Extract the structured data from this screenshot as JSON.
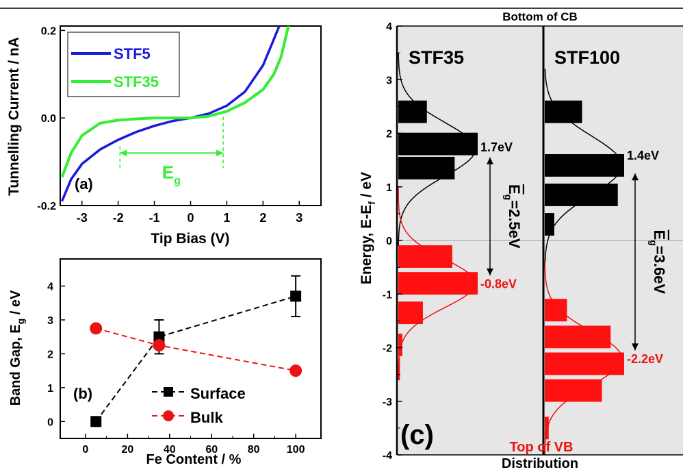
{
  "chart_data": [
    {
      "panel": "a",
      "type": "line",
      "panel_label": "(a)",
      "xlabel": "Tip Bias (V)",
      "ylabel": "Tunnelling Current / nA",
      "xlim": [
        -3.6,
        3.6
      ],
      "ylim": [
        -0.2,
        0.21
      ],
      "xticks": [
        -3,
        -2,
        -1,
        0,
        1,
        2,
        3
      ],
      "xtick_labels": [
        "-3",
        "-2",
        "-1",
        "0",
        "1",
        "2",
        "3"
      ],
      "yticks": [
        -0.2,
        0.0,
        0.2
      ],
      "ytick_labels": [
        "-0.2",
        "0.0",
        "0.2"
      ],
      "legend_position": "top-left",
      "series": [
        {
          "name": "STF5",
          "color": "#1a1adb",
          "x": [
            -3.55,
            -3.3,
            -3.0,
            -2.5,
            -2.0,
            -1.5,
            -1.0,
            -0.5,
            0.0,
            0.5,
            1.0,
            1.5,
            2.0,
            2.2,
            2.45
          ],
          "y": [
            -0.19,
            -0.14,
            -0.105,
            -0.072,
            -0.05,
            -0.032,
            -0.018,
            -0.007,
            0.0,
            0.01,
            0.028,
            0.06,
            0.12,
            0.16,
            0.21
          ]
        },
        {
          "name": "STF35",
          "color": "#33ee33",
          "x": [
            -3.55,
            -3.3,
            -3.0,
            -2.5,
            -2.0,
            -1.5,
            -1.0,
            -0.5,
            0.0,
            0.5,
            1.0,
            1.5,
            2.0,
            2.3,
            2.5,
            2.7
          ],
          "y": [
            -0.135,
            -0.08,
            -0.04,
            -0.012,
            -0.005,
            -0.002,
            0.0,
            0.0,
            0.0,
            0.004,
            0.015,
            0.035,
            0.065,
            0.1,
            0.14,
            0.21
          ]
        }
      ],
      "gap_annotation": {
        "text": "E",
        "subscript": "g",
        "from_x": -1.95,
        "to_x": 0.9,
        "y": -0.08
      }
    },
    {
      "panel": "b",
      "type": "scatter",
      "panel_label": "(b)",
      "xlabel": "Fe Content  / %",
      "ylabel": "Band Gap, E",
      "ylabel_sub": "g",
      "ylabel_suffix": " / eV",
      "xlim": [
        -12,
        112
      ],
      "ylim": [
        -0.5,
        4.8
      ],
      "xticks": [
        0,
        20,
        40,
        60,
        80,
        100
      ],
      "xtick_labels": [
        "0",
        "20",
        "40",
        "60",
        "80",
        "100"
      ],
      "yticks": [
        0,
        1,
        2,
        3,
        4
      ],
      "ytick_labels": [
        "0",
        "1",
        "2",
        "3",
        "4"
      ],
      "legend_position": "bottom-right",
      "series": [
        {
          "name": "Surface",
          "marker": "square",
          "color": "#000000",
          "x": [
            5,
            35,
            100
          ],
          "y": [
            0.0,
            2.5,
            3.7
          ],
          "yerr": [
            0,
            0.5,
            0.6
          ]
        },
        {
          "name": "Bulk",
          "marker": "circle",
          "color": "#ee1111",
          "x": [
            5,
            35,
            100
          ],
          "y": [
            2.75,
            2.25,
            1.5
          ]
        }
      ]
    },
    {
      "panel": "c",
      "type": "bar",
      "orientation": "horizontal",
      "panel_label": "(c)",
      "ylabel": "Energy, E-E",
      "ylabel_sub": "f",
      "ylabel_suffix": " / eV",
      "xlabel": "Distribution",
      "top_label": "Bottom of CB",
      "bottom_label": "Top of VB",
      "ylim": [
        -4,
        4
      ],
      "yticks": [
        -4,
        -3,
        -2,
        -1,
        0,
        1,
        2,
        3,
        4
      ],
      "ytick_labels": [
        "-4",
        "-3",
        "-2",
        "-1",
        "0",
        "1",
        "2",
        "3",
        "4"
      ],
      "background": "#e6e6e6",
      "subpanels": [
        {
          "name": "STF35",
          "cb_bars": [
            {
              "energy": 2.4,
              "value": 0.36
            },
            {
              "energy": 1.8,
              "value": 1.0
            },
            {
              "energy": 1.35,
              "value": 0.71
            }
          ],
          "vb_bars": [
            {
              "energy": -0.3,
              "value": 0.68
            },
            {
              "energy": -0.8,
              "value": 1.0
            },
            {
              "energy": -1.35,
              "value": 0.31
            },
            {
              "energy": -1.95,
              "value": 0.05
            },
            {
              "energy": -2.4,
              "value": 0.02
            }
          ],
          "cb_peak": 1.7,
          "vb_peak": -0.8,
          "cb_peak_label": "1.7eV",
          "vb_peak_label": "-0.8eV",
          "gap_label": "E",
          "gap_sub": "g",
          "gap_value_label": "=2.5eV"
        },
        {
          "name": "STF100",
          "cb_bars": [
            {
              "energy": 2.4,
              "value": 0.47
            },
            {
              "energy": 1.4,
              "value": 1.0
            },
            {
              "energy": 0.85,
              "value": 0.92
            },
            {
              "energy": 0.3,
              "value": 0.12
            }
          ],
          "vb_bars": [
            {
              "energy": -1.3,
              "value": 0.28
            },
            {
              "energy": -1.8,
              "value": 0.83
            },
            {
              "energy": -2.3,
              "value": 1.0
            },
            {
              "energy": -2.8,
              "value": 0.72
            },
            {
              "energy": -3.5,
              "value": 0.05
            }
          ],
          "cb_peak": 1.4,
          "vb_peak": -2.2,
          "cb_peak_label": "1.4eV",
          "vb_peak_label": "-2.2eV",
          "gap_label": "E",
          "gap_sub": "g",
          "gap_value_label": "=3.6eV"
        }
      ],
      "cb_color": "#000000",
      "vb_color": "#ff1111"
    }
  ]
}
